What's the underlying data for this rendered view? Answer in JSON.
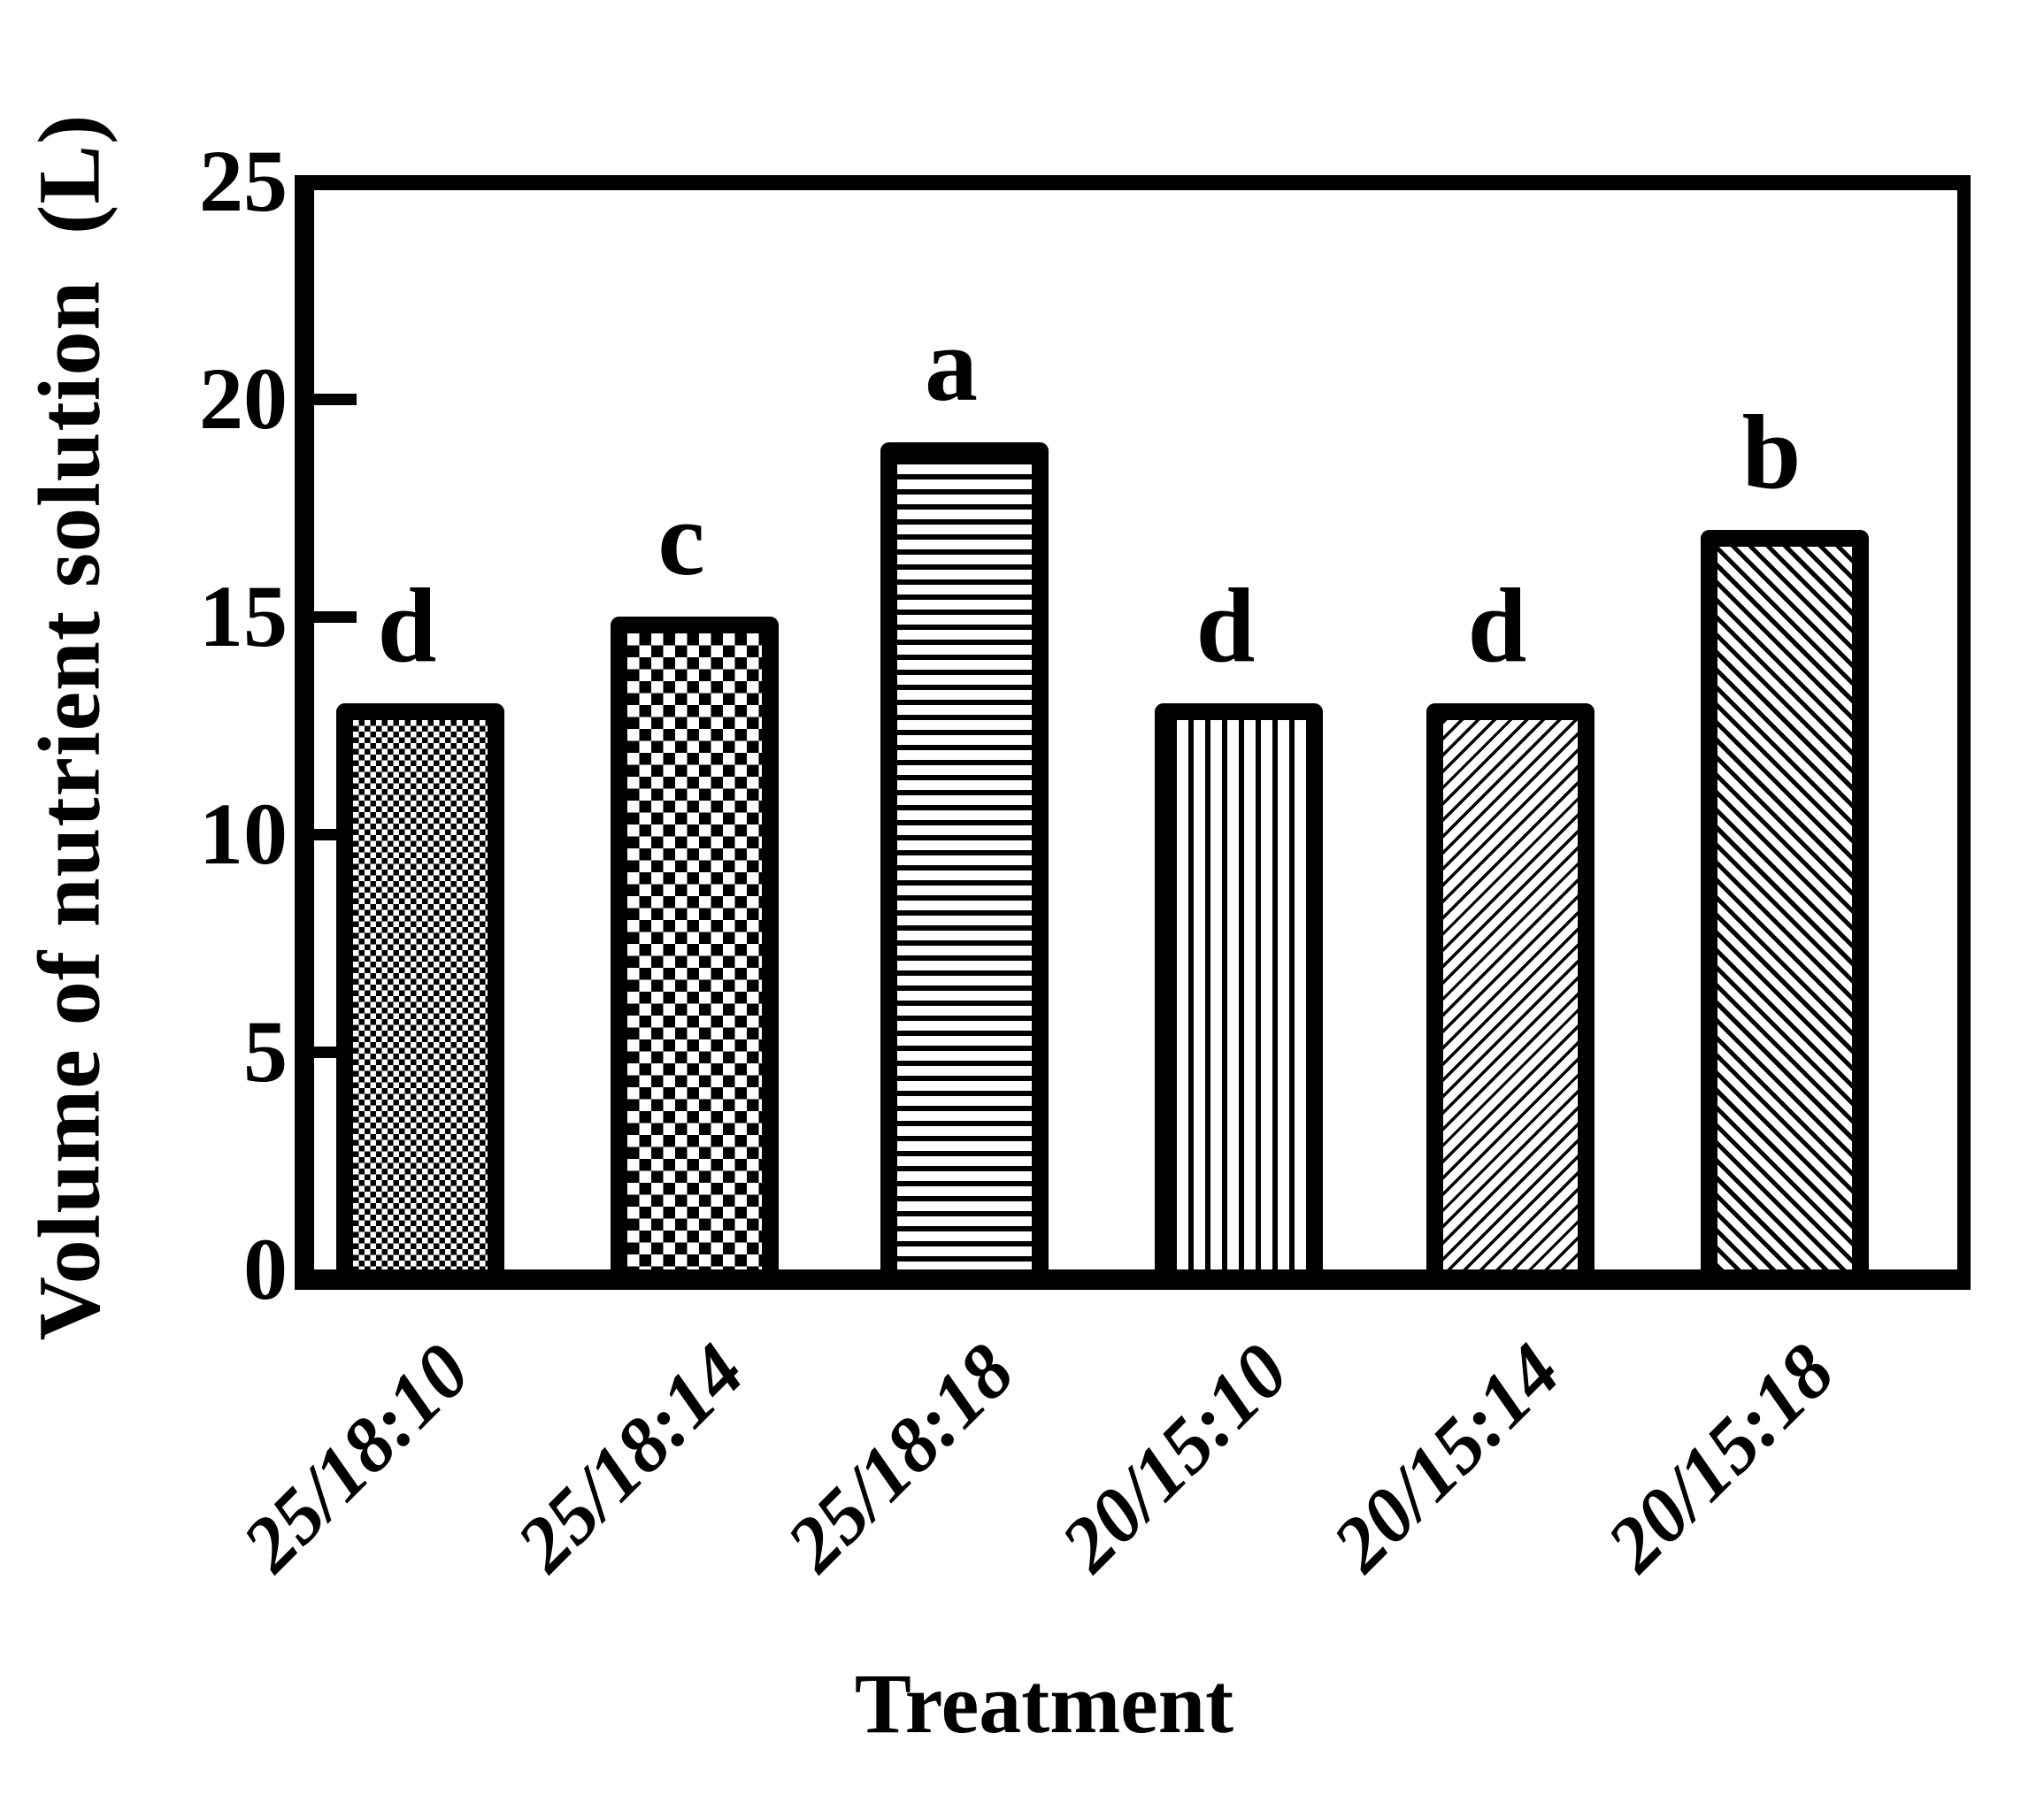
{
  "chart_data": {
    "type": "bar",
    "title": "",
    "xlabel": "Treatment",
    "ylabel": "Volume of nutrient solution  (L)",
    "categories": [
      "25/18:10",
      "25/18:14",
      "25/18:18",
      "20/15:10",
      "20/15:14",
      "20/15:18"
    ],
    "values": [
      13,
      15,
      19,
      13,
      13,
      17
    ],
    "significance_letters": [
      "d",
      "c",
      "a",
      "d",
      "d",
      "b"
    ],
    "bar_patterns": [
      "fine-checker",
      "coarse-checker",
      "horizontal-lines",
      "vertical-lines",
      "diagonal-forward",
      "diagonal-back"
    ],
    "ylim": [
      0,
      25
    ],
    "yticks": [
      0,
      5,
      10,
      15,
      20,
      25
    ],
    "inner_tick_values": [
      5,
      10,
      15,
      20
    ],
    "grid": "off",
    "legend": "none",
    "colors": {
      "foreground": "#000000",
      "background": "#ffffff"
    }
  }
}
